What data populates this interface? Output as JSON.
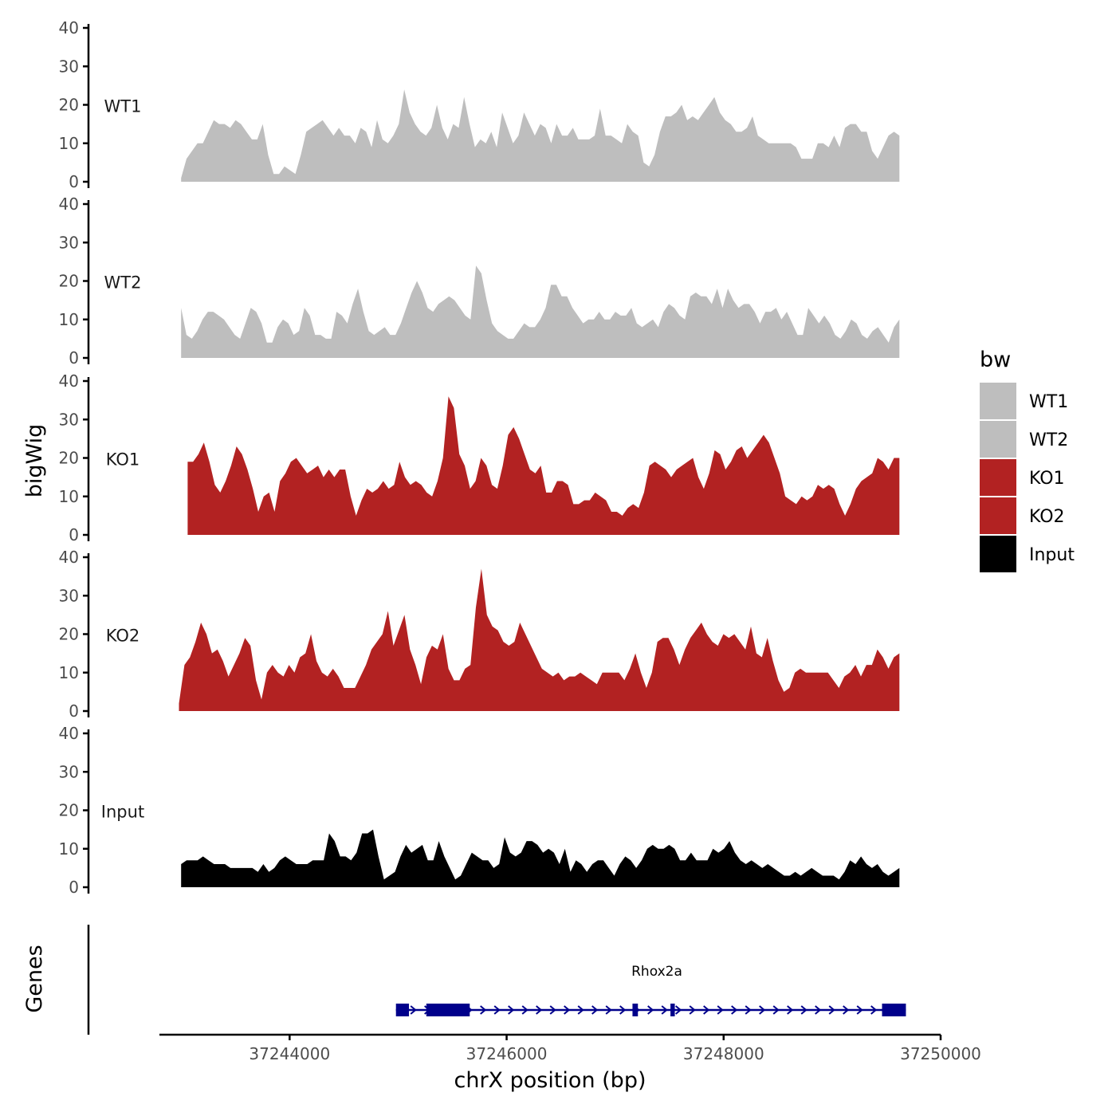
{
  "chart_data": {
    "type": "area",
    "title": "",
    "ylabel": "bigWig",
    "xlabel": "chrX position (bp)",
    "genes_label": "Genes",
    "ylim": [
      0,
      40
    ],
    "xlim": [
      37242800,
      37250000
    ],
    "y_ticks": [
      0,
      10,
      20,
      30,
      40
    ],
    "y_tick_labels": [
      "0",
      "10",
      "20",
      "30",
      "40"
    ],
    "x_ticks": [
      37244000,
      37246000,
      37248000,
      37250000
    ],
    "x_tick_labels": [
      "37244000",
      "37246000",
      "37248000",
      "37250000"
    ],
    "legend": {
      "title": "bw",
      "position": "right",
      "entries": [
        {
          "name": "WT1",
          "color": "#bebebe"
        },
        {
          "name": "WT2",
          "color": "#bebebe"
        },
        {
          "name": "KO1",
          "color": "#b22222"
        },
        {
          "name": "KO2",
          "color": "#b22222"
        },
        {
          "name": "Input",
          "color": "#000000"
        }
      ]
    },
    "series": [
      {
        "name": "WT1",
        "label": "WT1",
        "color": "#bebebe",
        "x_start": 37243000,
        "x_end": 37249620,
        "values": [
          1,
          6,
          8,
          10,
          10,
          13,
          16,
          15,
          15,
          14,
          16,
          15,
          13,
          11,
          11,
          15,
          7,
          2,
          2,
          4,
          3,
          2,
          7,
          13,
          14,
          15,
          16,
          14,
          12,
          14,
          12,
          12,
          10,
          14,
          13,
          9,
          16,
          11,
          10,
          12,
          15,
          24,
          18,
          15,
          13,
          12,
          14,
          20,
          14,
          11,
          15,
          14,
          22,
          15,
          9,
          11,
          10,
          13,
          9,
          18,
          14,
          10,
          12,
          18,
          15,
          12,
          15,
          14,
          10,
          15,
          12,
          12,
          14,
          11,
          11,
          11,
          12,
          19,
          12,
          12,
          11,
          10,
          15,
          13,
          12,
          5,
          4,
          7,
          13,
          17,
          17,
          18,
          20,
          16,
          17,
          16,
          18,
          20,
          22,
          18,
          16,
          15,
          13,
          13,
          14,
          17,
          12,
          11,
          10,
          10,
          10,
          10,
          10,
          9,
          6,
          6,
          6,
          10,
          10,
          9,
          12,
          9,
          14,
          15,
          15,
          13,
          13,
          8,
          6,
          9,
          12,
          13,
          12
        ]
      },
      {
        "name": "WT2",
        "label": "WT2",
        "color": "#bebebe",
        "x_start": 37243000,
        "x_end": 37249620,
        "values": [
          13,
          6,
          5,
          7,
          10,
          12,
          12,
          11,
          10,
          8,
          6,
          5,
          9,
          13,
          12,
          9,
          4,
          4,
          8,
          10,
          9,
          6,
          7,
          13,
          11,
          6,
          6,
          5,
          5,
          12,
          11,
          9,
          14,
          18,
          12,
          7,
          6,
          7,
          8,
          6,
          6,
          9,
          13,
          17,
          20,
          17,
          13,
          12,
          14,
          15,
          16,
          15,
          13,
          11,
          10,
          24,
          22,
          15,
          9,
          7,
          6,
          5,
          5,
          7,
          9,
          8,
          8,
          10,
          13,
          19,
          19,
          16,
          16,
          13,
          11,
          9,
          10,
          10,
          12,
          10,
          10,
          12,
          11,
          11,
          13,
          9,
          8,
          9,
          10,
          8,
          12,
          14,
          13,
          11,
          10,
          16,
          17,
          16,
          16,
          14,
          18,
          13,
          18,
          15,
          13,
          14,
          14,
          12,
          9,
          12,
          12,
          13,
          10,
          12,
          9,
          6,
          6,
          13,
          11,
          9,
          11,
          9,
          6,
          5,
          7,
          10,
          9,
          6,
          5,
          7,
          8,
          6,
          4,
          8,
          10
        ]
      },
      {
        "name": "KO1",
        "label": "KO1",
        "color": "#b22222",
        "x_start": 37243060,
        "x_end": 37249620,
        "values": [
          19,
          19,
          21,
          24,
          19,
          13,
          11,
          14,
          18,
          23,
          21,
          17,
          12,
          6,
          10,
          11,
          6,
          14,
          16,
          19,
          20,
          18,
          16,
          17,
          18,
          15,
          17,
          15,
          17,
          17,
          10,
          5,
          9,
          12,
          11,
          12,
          14,
          12,
          13,
          19,
          15,
          13,
          14,
          13,
          11,
          10,
          14,
          20,
          36,
          33,
          21,
          18,
          12,
          14,
          20,
          18,
          13,
          12,
          18,
          26,
          28,
          25,
          21,
          17,
          16,
          18,
          11,
          11,
          14,
          14,
          13,
          8,
          8,
          9,
          9,
          11,
          10,
          9,
          6,
          6,
          5,
          7,
          8,
          7,
          11,
          18,
          19,
          18,
          17,
          15,
          17,
          18,
          19,
          20,
          15,
          12,
          16,
          22,
          21,
          17,
          19,
          22,
          23,
          20,
          22,
          24,
          26,
          24,
          20,
          16,
          10,
          9,
          8,
          10,
          9,
          10,
          13,
          12,
          13,
          12,
          8,
          5,
          8,
          12,
          14,
          15,
          16,
          20,
          19,
          17,
          20,
          20
        ]
      },
      {
        "name": "KO2",
        "label": "KO2",
        "color": "#b22222",
        "x_start": 37242980,
        "x_end": 37249620,
        "values": [
          2,
          12,
          14,
          18,
          23,
          20,
          15,
          16,
          13,
          9,
          12,
          15,
          19,
          17,
          8,
          3,
          10,
          12,
          10,
          9,
          12,
          10,
          14,
          15,
          20,
          13,
          10,
          9,
          11,
          9,
          6,
          6,
          6,
          9,
          12,
          16,
          18,
          20,
          26,
          17,
          21,
          25,
          16,
          12,
          7,
          14,
          17,
          16,
          20,
          11,
          8,
          8,
          11,
          12,
          27,
          37,
          25,
          22,
          21,
          18,
          17,
          18,
          23,
          20,
          17,
          14,
          11,
          10,
          9,
          10,
          8,
          9,
          9,
          10,
          9,
          8,
          7,
          10,
          10,
          10,
          10,
          8,
          11,
          15,
          10,
          6,
          10,
          18,
          19,
          19,
          16,
          12,
          16,
          19,
          21,
          23,
          20,
          18,
          17,
          20,
          19,
          20,
          18,
          16,
          22,
          15,
          14,
          19,
          13,
          8,
          5,
          6,
          10,
          11,
          10,
          10,
          10,
          10,
          10,
          8,
          6,
          9,
          10,
          12,
          9,
          12,
          12,
          16,
          14,
          11,
          14,
          15
        ]
      },
      {
        "name": "Input",
        "label": "Input",
        "color": "#000000",
        "x_start": 37243000,
        "x_end": 37249620,
        "values": [
          6,
          7,
          7,
          7,
          8,
          7,
          6,
          6,
          6,
          5,
          5,
          5,
          5,
          5,
          4,
          6,
          4,
          5,
          7,
          8,
          7,
          6,
          6,
          6,
          7,
          7,
          7,
          14,
          12,
          8,
          8,
          7,
          9,
          14,
          14,
          15,
          8,
          2,
          3,
          4,
          8,
          11,
          9,
          10,
          11,
          7,
          7,
          12,
          8,
          5,
          2,
          3,
          6,
          9,
          8,
          7,
          7,
          5,
          6,
          13,
          9,
          8,
          9,
          12,
          12,
          11,
          9,
          10,
          9,
          6,
          10,
          4,
          7,
          6,
          4,
          6,
          7,
          7,
          5,
          3,
          6,
          8,
          7,
          5,
          7,
          10,
          11,
          10,
          10,
          11,
          10,
          7,
          7,
          9,
          7,
          7,
          7,
          10,
          9,
          10,
          12,
          9,
          7,
          6,
          7,
          6,
          5,
          6,
          5,
          4,
          3,
          3,
          4,
          3,
          4,
          5,
          4,
          3,
          3,
          3,
          2,
          4,
          7,
          6,
          8,
          6,
          5,
          6,
          4,
          3,
          4,
          5
        ]
      }
    ],
    "gene_track": {
      "gene_name": "Rhox2a",
      "color": "#00008b",
      "start": 37244980,
      "end": 37249680,
      "strand": "+",
      "exons": [
        {
          "start": 37244980,
          "end": 37245100
        },
        {
          "start": 37245260,
          "end": 37245660
        },
        {
          "start": 37247160,
          "end": 37247210
        },
        {
          "start": 37247510,
          "end": 37247550
        },
        {
          "start": 37249460,
          "end": 37249680
        }
      ]
    }
  }
}
